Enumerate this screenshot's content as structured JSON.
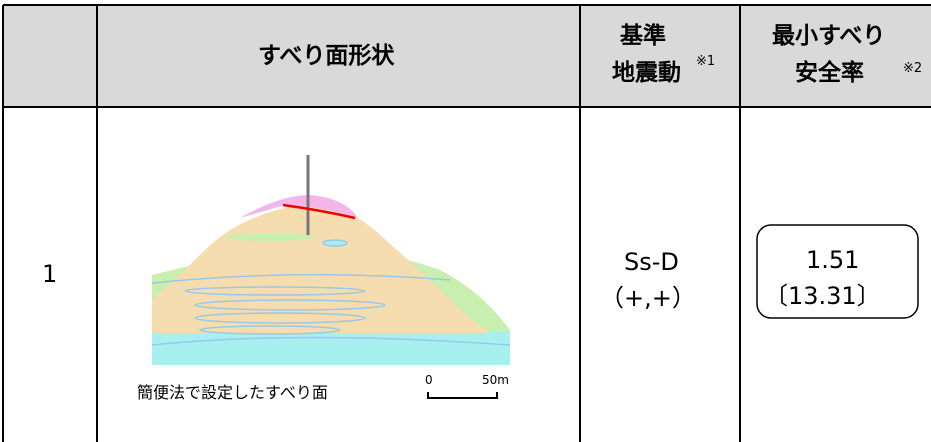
{
  "header": {
    "shape": "すべり面形状",
    "motion": [
      "基準",
      "地震動"
    ],
    "motion_note": "※1",
    "safety": [
      "最小すべり",
      "安全率"
    ],
    "safety_note": "※2"
  },
  "rows": [
    {
      "no": "1",
      "figure_caption": "簡便法で設定したすべり面",
      "scale_labels": [
        "0",
        "50m"
      ],
      "motion": [
        "Ss-D",
        "（+,+）"
      ],
      "safety": [
        "1.51",
        "〔13.31〕"
      ]
    }
  ]
}
